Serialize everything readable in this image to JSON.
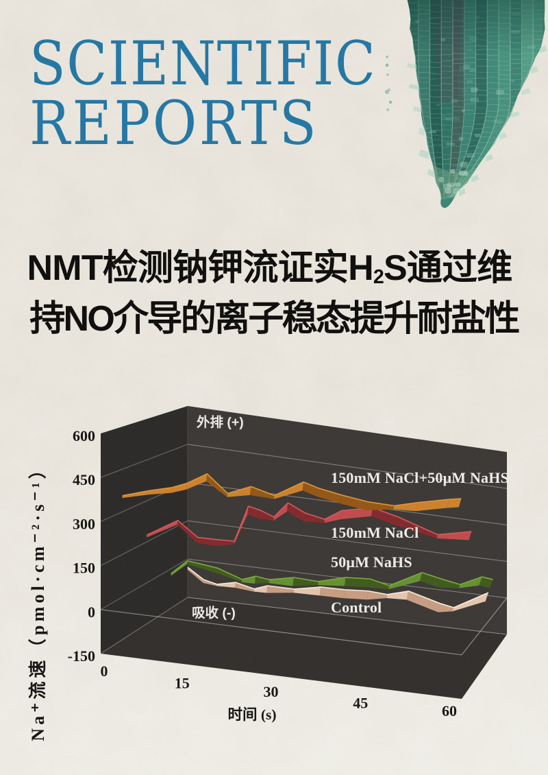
{
  "masthead": {
    "line1": "SCIENTIFIC",
    "line2": "REPORTS",
    "color": "#20719f"
  },
  "hero_image": {
    "description": "root-tip-micrograph"
  },
  "title": {
    "line1_pre": "NMT检测钠钾流证实H",
    "line1_sub": "2",
    "line1_post": "S通过维",
    "line2": "持NO介导的离子稳态提升耐盐性"
  },
  "chart_data": {
    "type": "line",
    "projection": "3d-waterfall",
    "title": "",
    "xlabel": "时间 (s)",
    "ylabel": "Na⁺流速（pmol·cm⁻²·s⁻¹）",
    "xlim": [
      0,
      60
    ],
    "ylim": [
      -150,
      600
    ],
    "x_ticks": [
      0,
      15,
      30,
      45,
      60
    ],
    "y_ticks": [
      600,
      450,
      300,
      150,
      0,
      -150
    ],
    "grid": true,
    "annotations": {
      "efflux": "外排 (+)",
      "influx": "吸收 (-)"
    },
    "series": [
      {
        "name": "150mM NaCl+50μM NaHS",
        "depth": 0.25,
        "color": "#cd812a",
        "color_dark": "#935614",
        "color_edge": "#e0953a",
        "x": [
          0,
          4.5,
          8.5,
          11,
          14.5,
          18,
          22,
          26,
          31,
          33.5,
          37.5,
          42,
          46.5,
          50.5,
          56,
          58
        ],
        "y": [
          357,
          386,
          408,
          429,
          472,
          412,
          447,
          426,
          487,
          472,
          458,
          446,
          444,
          466,
          492,
          500
        ]
      },
      {
        "name": "150mM NaCl",
        "depth": 0.53,
        "color": "#c14a4c",
        "color_dark": "#82282b",
        "color_edge": "#d4595c",
        "x": [
          0,
          5.5,
          9,
          12.5,
          15.5,
          18,
          20,
          22.5,
          25,
          28,
          31.5,
          34.5,
          40,
          44.5,
          51.5,
          57.5
        ],
        "y": [
          175,
          243,
          190,
          191,
          193,
          329,
          320,
          301,
          360,
          331,
          317,
          357,
          383,
          361,
          314,
          342
        ]
      },
      {
        "name": "50μM NaHS",
        "depth": 0.81,
        "color": "#649030",
        "color_dark": "#3f5a1c",
        "color_edge": "#7cab3d",
        "x": [
          0,
          3,
          8.5,
          13,
          15.5,
          18,
          22.5,
          27,
          32,
          36.5,
          40,
          46,
          49.5,
          53,
          57,
          59
        ],
        "y": [
          -18,
          38,
          24,
          -8,
          11,
          4,
          24,
          20,
          49,
          55,
          38,
          105,
          90,
          77,
          118,
          113
        ]
      },
      {
        "name": "Control",
        "depth": 1.0,
        "color": "#e5c6ae",
        "color_dark": "#c79d82",
        "color_edge": "#f8ecdc",
        "x": [
          0,
          3,
          5.5,
          9,
          12.5,
          15,
          20,
          25,
          29.5,
          34,
          37.5,
          41.5,
          47.5,
          50,
          56.5
        ],
        "y": [
          -32,
          -73,
          -85,
          -69,
          -86,
          -67,
          -68,
          -47,
          -46,
          -40,
          -45,
          -21,
          -56,
          -66,
          12
        ]
      }
    ]
  }
}
